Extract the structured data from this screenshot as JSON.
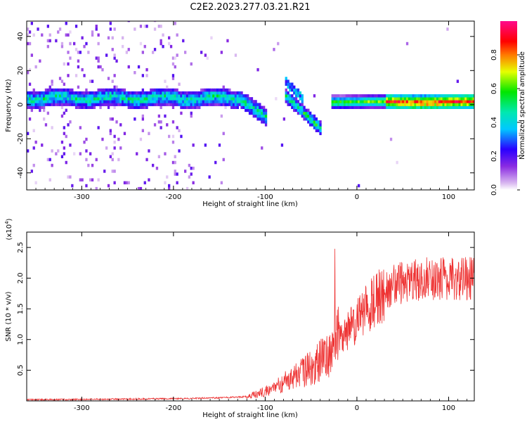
{
  "figure": {
    "title": "C2E2.2023.277.03.21.R21"
  },
  "chart_data": [
    {
      "type": "heatmap",
      "xlabel": "Height of straight line (km)",
      "ylabel": "Frequency (Hz)",
      "xlim": [
        -360,
        128
      ],
      "ylim": [
        -50,
        49
      ],
      "x_ticks": [
        -300,
        -200,
        -100,
        0,
        100
      ],
      "y_ticks": [
        -40,
        -20,
        0,
        20,
        40
      ],
      "colorbar": {
        "label": "Normalized spectral amplitude",
        "range": [
          0,
          1
        ],
        "ticks": [
          0.0,
          0.2,
          0.4,
          0.6,
          0.8
        ],
        "colormap": "rainbow (white-lavender-violet-blue-cyan-green-yellow-red-magenta)"
      },
      "features": [
        {
          "name": "main band",
          "x": [
            -360,
            -130
          ],
          "freq_hz": [
            3,
            5
          ],
          "amplitude": [
            0.3,
            0.5
          ]
        },
        {
          "name": "descending trace",
          "x": [
            -130,
            -100
          ],
          "freq_hz": [
            3,
            -8
          ],
          "amplitude": [
            0.4,
            0.6
          ]
        },
        {
          "name": "second trace",
          "x": [
            -80,
            -40
          ],
          "freq_hz": [
            5,
            -15
          ],
          "amplitude": [
            0.4,
            0.7
          ]
        },
        {
          "name": "tonal line",
          "x": [
            -30,
            128
          ],
          "freq_hz": [
            0,
            1
          ],
          "amplitude": [
            0.6,
            0.95
          ]
        },
        {
          "name": "broadband noise",
          "x": [
            -360,
            -180
          ],
          "freq_hz": [
            -50,
            49
          ],
          "amplitude": [
            0.02,
            0.3
          ]
        }
      ]
    },
    {
      "type": "line",
      "xlabel": "Height of straight line (km)",
      "ylabel": "SNR (10 * v/v)",
      "y_multiplier": "(x10",
      "y_multiplier_exp": "4",
      "y_multiplier_close": ")",
      "xlim": [
        -360,
        128
      ],
      "ylim": [
        0,
        2.75
      ],
      "x_ticks": [
        -300,
        -200,
        -100,
        0,
        100
      ],
      "y_ticks": [
        0.5,
        1.0,
        1.5,
        2.0,
        2.5
      ],
      "line_color": "#ee3333",
      "series_envelope": {
        "x": [
          -360,
          -250,
          -180,
          -150,
          -120,
          -100,
          -80,
          -60,
          -40,
          -30,
          -20,
          -10,
          0,
          20,
          40,
          60,
          80,
          100,
          128
        ],
        "y": [
          0.02,
          0.03,
          0.04,
          0.05,
          0.07,
          0.15,
          0.3,
          0.45,
          0.65,
          0.8,
          1.0,
          1.15,
          1.3,
          1.65,
          1.9,
          1.95,
          2.0,
          2.0,
          2.0
        ]
      }
    }
  ]
}
